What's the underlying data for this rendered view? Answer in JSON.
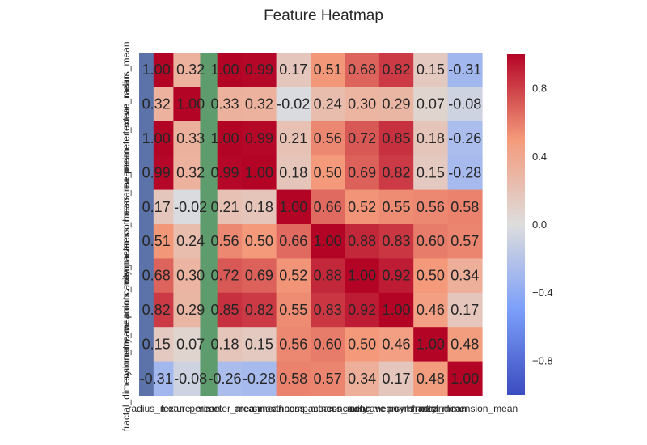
{
  "chart_data": {
    "type": "heatmap",
    "title": "Feature Heatmap",
    "x_labels": [
      "radius_mean",
      "texture_mean",
      "perimeter_mean",
      "area_mean",
      "smoothness_mean",
      "compactness_mean",
      "concavity_mean",
      "concave points_mean",
      "symmetry_mean",
      "fractal_dimension_mean"
    ],
    "y_labels": [
      "radius_mean",
      "texture_mean",
      "perimeter_mean",
      "area_mean",
      "smoothness_mean",
      "compactness_mean",
      "concavity_mean",
      "concave points_mean",
      "symmetry_mean",
      "fractal_dimension_mean"
    ],
    "matrix": [
      [
        1.0,
        0.32,
        1.0,
        0.99,
        0.17,
        0.51,
        0.68,
        0.82,
        0.15,
        -0.31
      ],
      [
        0.32,
        1.0,
        0.33,
        0.32,
        -0.02,
        0.24,
        0.3,
        0.29,
        0.07,
        -0.08
      ],
      [
        1.0,
        0.33,
        1.0,
        0.99,
        0.21,
        0.56,
        0.72,
        0.85,
        0.18,
        -0.26
      ],
      [
        0.99,
        0.32,
        0.99,
        1.0,
        0.18,
        0.5,
        0.69,
        0.82,
        0.15,
        -0.28
      ],
      [
        0.17,
        -0.02,
        0.21,
        0.18,
        1.0,
        0.66,
        0.52,
        0.55,
        0.56,
        0.58
      ],
      [
        0.51,
        0.24,
        0.56,
        0.5,
        0.66,
        1.0,
        0.88,
        0.83,
        0.6,
        0.57
      ],
      [
        0.68,
        0.3,
        0.72,
        0.69,
        0.52,
        0.88,
        1.0,
        0.92,
        0.5,
        0.34
      ],
      [
        0.82,
        0.29,
        0.85,
        0.82,
        0.55,
        0.83,
        0.92,
        1.0,
        0.46,
        0.17
      ],
      [
        0.15,
        0.07,
        0.18,
        0.15,
        0.56,
        0.6,
        0.5,
        0.46,
        1.0,
        0.48
      ],
      [
        -0.31,
        -0.08,
        -0.26,
        -0.28,
        0.58,
        0.57,
        0.34,
        0.17,
        0.48,
        1.0
      ]
    ],
    "cell_labels": [
      [
        "1.00",
        "0.32",
        "1.00",
        "0.99",
        "0.17",
        "0.51",
        "0.68",
        "0.82",
        "0.15",
        "-0.31"
      ],
      [
        "0.32",
        "1.00",
        "0.33",
        "0.32",
        "-0.02",
        "0.24",
        "0.30",
        "0.29",
        "0.07",
        "-0.08"
      ],
      [
        "1.00",
        "0.33",
        "1.00",
        "0.99",
        "0.21",
        "0.56",
        "0.72",
        "0.85",
        "0.18",
        "-0.26"
      ],
      [
        "0.99",
        "0.32",
        "0.99",
        "1.00",
        "0.18",
        "0.50",
        "0.69",
        "0.82",
        "0.15",
        "-0.28"
      ],
      [
        "0.17",
        "-0.02",
        "0.21",
        "0.18",
        "1.00",
        "0.66",
        "0.52",
        "0.55",
        "0.56",
        "0.58"
      ],
      [
        "0.51",
        "0.24",
        "0.56",
        "0.50",
        "0.66",
        "1.00",
        "0.88",
        "0.83",
        "0.60",
        "0.57"
      ],
      [
        "0.68",
        "0.30",
        "0.72",
        "0.69",
        "0.52",
        "0.88",
        "1.00",
        "0.92",
        "0.50",
        "0.34"
      ],
      [
        "0.82",
        "0.29",
        "0.85",
        "0.82",
        "0.55",
        "0.83",
        "0.92",
        "1.00",
        "0.46",
        "0.17"
      ],
      [
        "0.15",
        "0.07",
        "0.18",
        "0.15",
        "0.56",
        "0.60",
        "0.50",
        "0.46",
        "1.00",
        "0.48"
      ],
      [
        "-0.31",
        "-0.08",
        "-0.26",
        "-0.28",
        "0.58",
        "0.57",
        "0.34",
        "0.17",
        "0.48",
        "1.00"
      ]
    ],
    "colormap": "coolwarm",
    "vmin": -1,
    "vmax": 1,
    "overlay_columns": [
      {
        "column": 0,
        "color": "#5b73a8"
      },
      {
        "column": 1,
        "color": "#5e9c6d"
      }
    ],
    "colorbar": {
      "ticks": [
        0.8,
        0.4,
        0.0,
        -0.4,
        -0.8
      ],
      "tick_labels": [
        "0.8",
        "0.4",
        "0.0",
        "−0.4",
        "−0.8"
      ]
    },
    "grid": false,
    "legend": "colorbar-right"
  }
}
